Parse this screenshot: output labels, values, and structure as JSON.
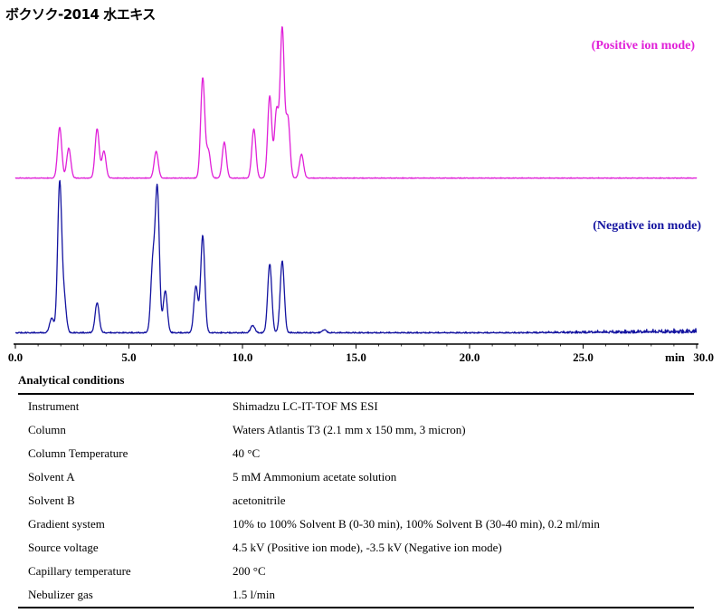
{
  "title": "ボクソク-2014 水エキス",
  "chart_data": {
    "type": "line",
    "xlabel": "min",
    "xlim": [
      0,
      30
    ],
    "x_ticks": [
      0,
      5,
      10,
      15,
      20,
      25,
      30
    ],
    "x_tick_labels": [
      "0.0",
      "5.0",
      "10.0",
      "15.0",
      "20.0",
      "25.0",
      "30.0"
    ],
    "series": [
      {
        "name": "(Positive ion mode)",
        "color": "#e020d8",
        "peaks": [
          {
            "x": 1.95,
            "y": 0.34
          },
          {
            "x": 2.35,
            "y": 0.2
          },
          {
            "x": 3.6,
            "y": 0.33
          },
          {
            "x": 3.9,
            "y": 0.18
          },
          {
            "x": 6.2,
            "y": 0.18
          },
          {
            "x": 8.25,
            "y": 0.67
          },
          {
            "x": 8.5,
            "y": 0.18
          },
          {
            "x": 9.2,
            "y": 0.24
          },
          {
            "x": 10.5,
            "y": 0.33
          },
          {
            "x": 11.2,
            "y": 0.55
          },
          {
            "x": 11.5,
            "y": 0.45
          },
          {
            "x": 11.75,
            "y": 1.0
          },
          {
            "x": 12.0,
            "y": 0.4
          },
          {
            "x": 12.6,
            "y": 0.16
          }
        ]
      },
      {
        "name": "(Negative ion mode)",
        "color": "#1414a0",
        "peaks": [
          {
            "x": 1.6,
            "y": 0.1
          },
          {
            "x": 1.95,
            "y": 1.0
          },
          {
            "x": 2.15,
            "y": 0.22
          },
          {
            "x": 3.6,
            "y": 0.2
          },
          {
            "x": 6.05,
            "y": 0.45
          },
          {
            "x": 6.25,
            "y": 0.95
          },
          {
            "x": 6.6,
            "y": 0.28
          },
          {
            "x": 7.95,
            "y": 0.31
          },
          {
            "x": 8.25,
            "y": 0.65
          },
          {
            "x": 10.45,
            "y": 0.05
          },
          {
            "x": 11.2,
            "y": 0.46
          },
          {
            "x": 11.75,
            "y": 0.48
          },
          {
            "x": 13.6,
            "y": 0.02
          }
        ]
      }
    ]
  },
  "conditions": {
    "heading": "Analytical conditions",
    "rows": [
      {
        "key": "Instrument",
        "value": "Shimadzu LC-IT-TOF MS ESI"
      },
      {
        "key": "Column",
        "value": "Waters Atlantis T3 (2.1 mm x 150 mm, 3 micron)"
      },
      {
        "key": "Column Temperature",
        "value": "40 °C"
      },
      {
        "key": "Solvent A",
        "value": "5 mM Ammonium acetate solution"
      },
      {
        "key": "Solvent B",
        "value": "acetonitrile"
      },
      {
        "key": "Gradient system",
        "value": "10% to 100% Solvent B (0-30 min), 100% Solvent B (30-40 min), 0.2 ml/min"
      },
      {
        "key": "Source voltage",
        "value": "4.5 kV (Positive ion mode), -3.5 kV (Negative ion mode)"
      },
      {
        "key": "Capillary temperature",
        "value": "200 °C"
      },
      {
        "key": "Nebulizer gas",
        "value": "1.5 l/min"
      }
    ]
  }
}
